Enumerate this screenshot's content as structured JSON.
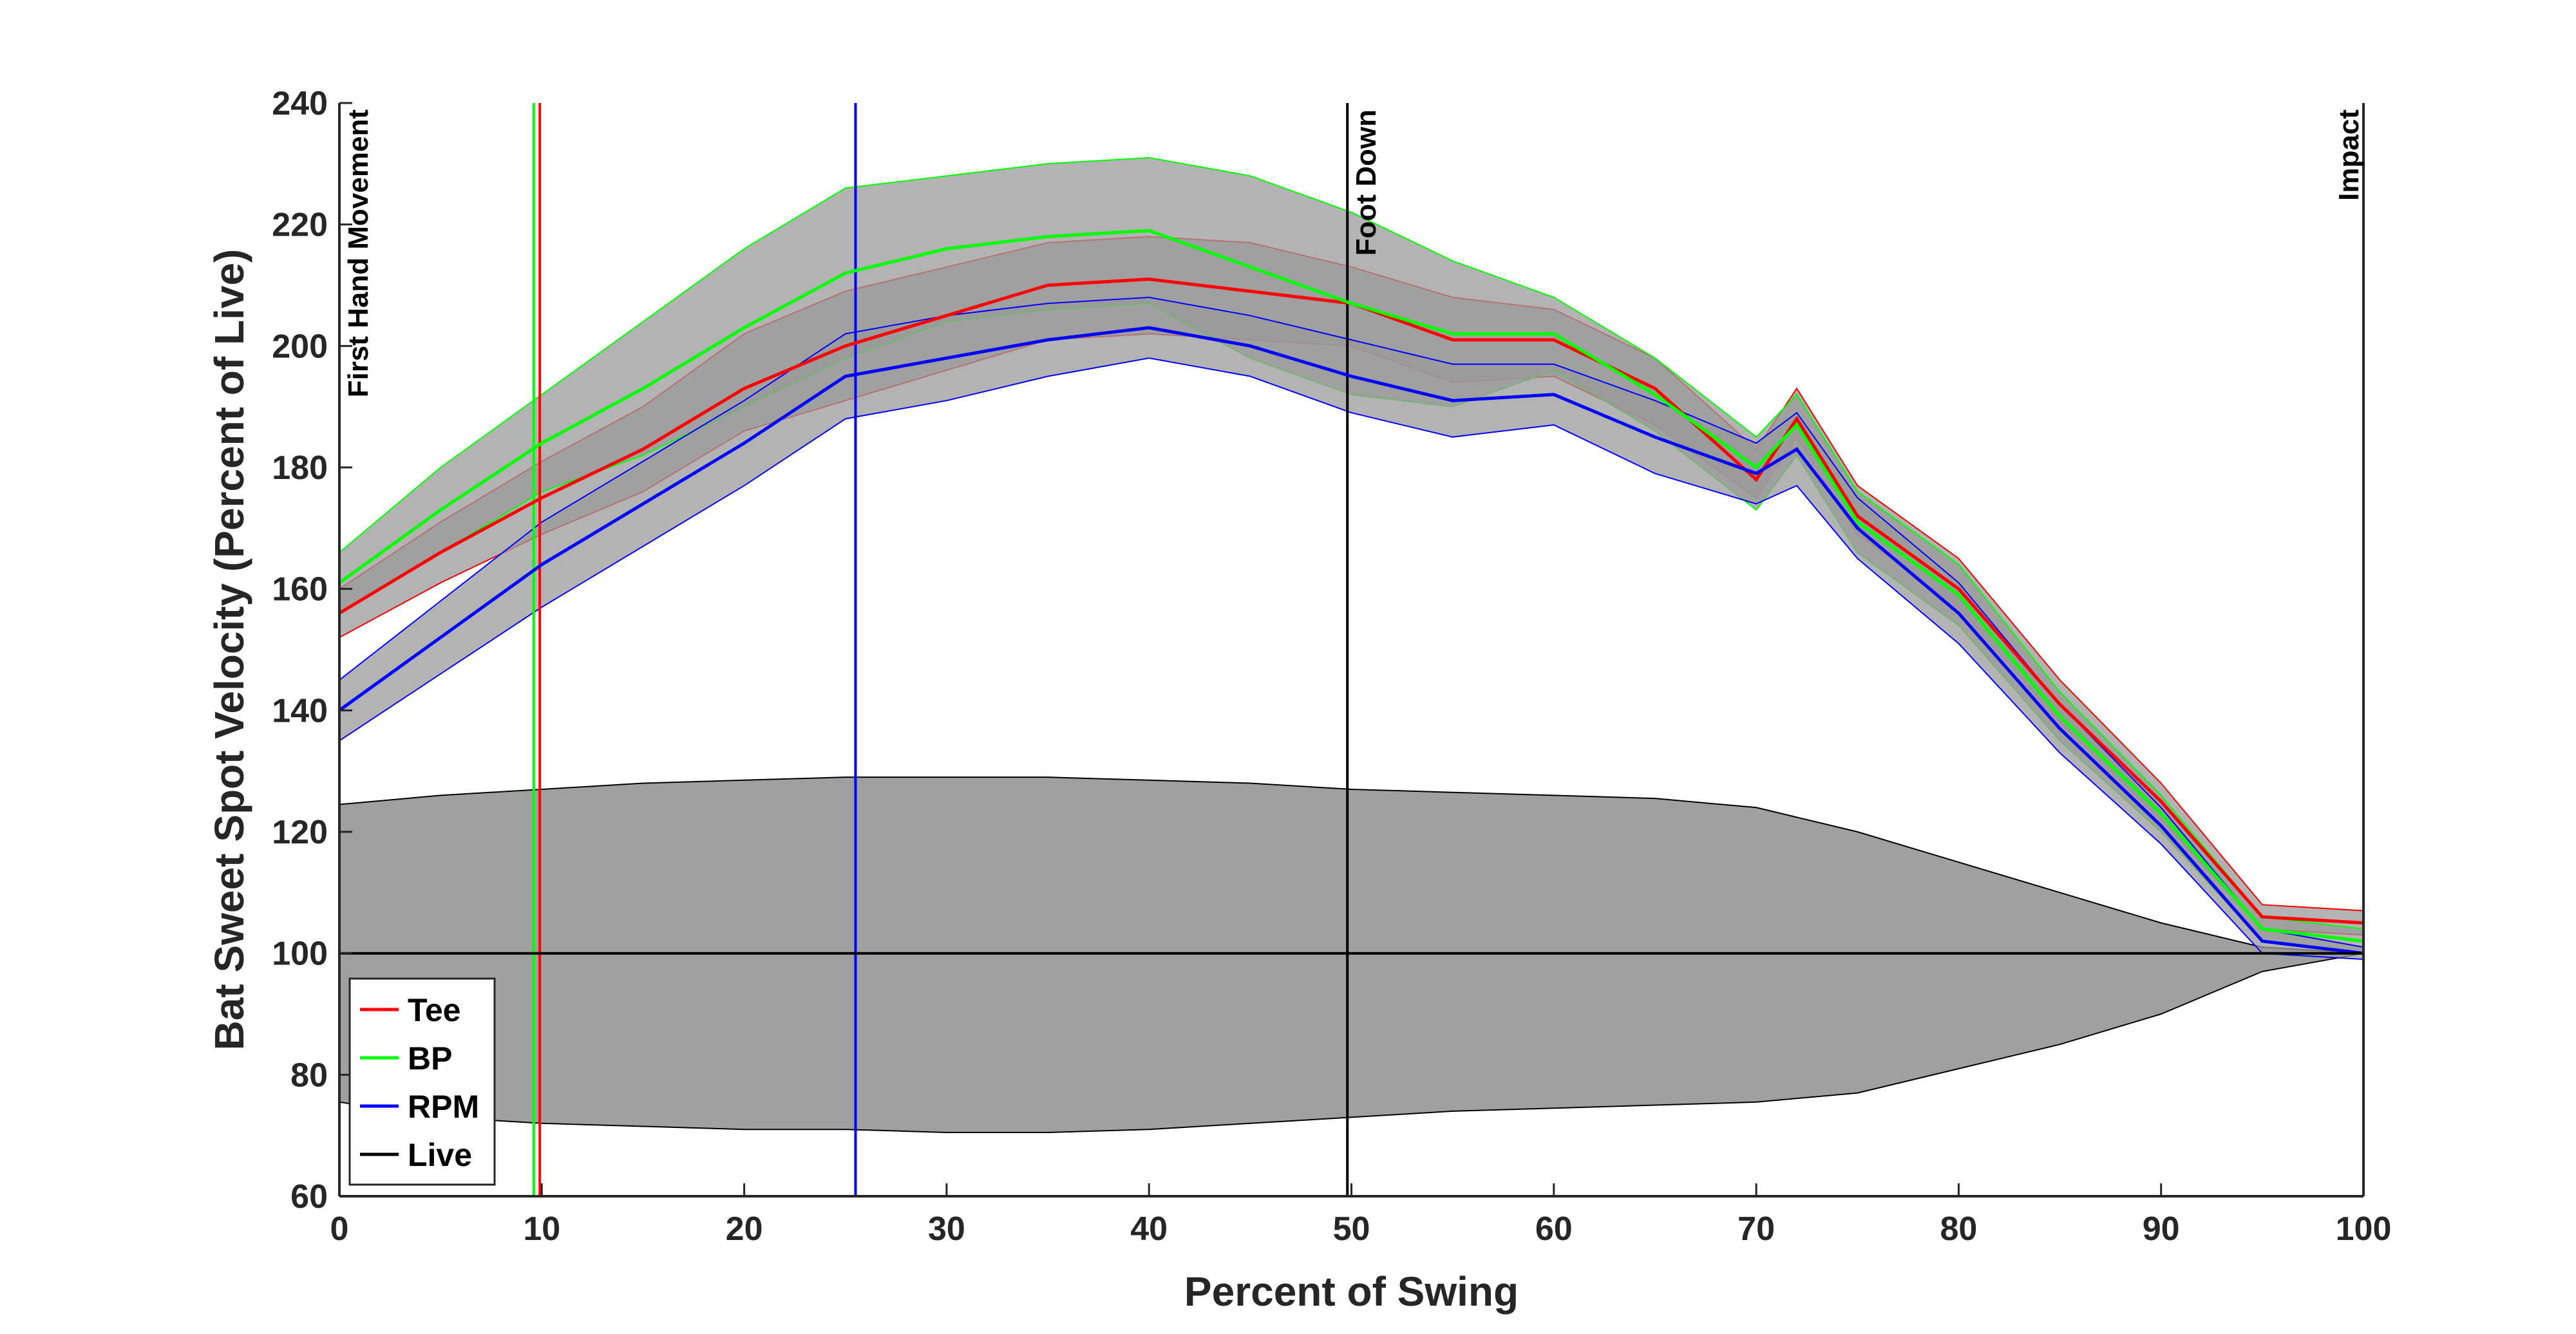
{
  "chart_data": {
    "type": "line",
    "title": "",
    "xlabel": "Percent of Swing",
    "ylabel": "Bat Sweet Spot Velocity (Percent of Live)",
    "xlim": [
      0,
      100
    ],
    "ylim": [
      60,
      240
    ],
    "xticks": [
      "0",
      "10",
      "20",
      "30",
      "40",
      "50",
      "60",
      "70",
      "80",
      "90",
      "100"
    ],
    "yticks": [
      "60",
      "80",
      "100",
      "120",
      "140",
      "160",
      "180",
      "200",
      "220",
      "240"
    ],
    "grid": false,
    "legend_position": "bottom-left",
    "series": [
      {
        "name": "Tee",
        "color": "#ff0000",
        "x": [
          0,
          5,
          10,
          15,
          20,
          25,
          30,
          35,
          40,
          45,
          50,
          55,
          60,
          65,
          70,
          72,
          75,
          80,
          85,
          90,
          95,
          100
        ],
        "mean": [
          156,
          166,
          175,
          183,
          193,
          200,
          205,
          210,
          211,
          209,
          207,
          201,
          201,
          193,
          178,
          188,
          172,
          160,
          141,
          125,
          106,
          105
        ],
        "upper": [
          160,
          171,
          181,
          190,
          202,
          209,
          213,
          217,
          218,
          217,
          213,
          208,
          206,
          198,
          183,
          193,
          177,
          165,
          145,
          128,
          108,
          107
        ],
        "lower": [
          152,
          161,
          169,
          176,
          186,
          191,
          196,
          201,
          202,
          201,
          200,
          194,
          195,
          187,
          175,
          185,
          169,
          157,
          138,
          122,
          104,
          103
        ]
      },
      {
        "name": "BP",
        "color": "#00ff00",
        "x": [
          0,
          5,
          10,
          15,
          20,
          25,
          30,
          35,
          40,
          45,
          50,
          55,
          60,
          65,
          70,
          72,
          75,
          80,
          85,
          90,
          95,
          100
        ],
        "mean": [
          161,
          173,
          184,
          193,
          203,
          212,
          216,
          218,
          219,
          213,
          207,
          202,
          202,
          192,
          180,
          187,
          171,
          159,
          139,
          123,
          104,
          102
        ],
        "upper": [
          166,
          180,
          192,
          204,
          216,
          226,
          228,
          230,
          231,
          228,
          222,
          214,
          208,
          198,
          185,
          192,
          176,
          164,
          143,
          126,
          106,
          104
        ],
        "lower": [
          156,
          166,
          176,
          182,
          190,
          198,
          204,
          206,
          207,
          198,
          192,
          190,
          196,
          186,
          173,
          182,
          166,
          154,
          135,
          120,
          102,
          100
        ]
      },
      {
        "name": "RPM",
        "color": "#0000ff",
        "x": [
          0,
          5,
          10,
          15,
          20,
          25,
          30,
          35,
          40,
          45,
          50,
          55,
          60,
          65,
          70,
          72,
          75,
          80,
          85,
          90,
          95,
          100
        ],
        "mean": [
          140,
          152,
          164,
          174,
          184,
          195,
          198,
          201,
          203,
          200,
          195,
          191,
          192,
          185,
          179,
          183,
          170,
          156,
          137,
          121,
          102,
          100
        ],
        "upper": [
          145,
          158,
          171,
          181,
          191,
          202,
          205,
          207,
          208,
          205,
          201,
          197,
          197,
          191,
          184,
          189,
          175,
          161,
          141,
          124,
          104,
          101
        ],
        "lower": [
          135,
          146,
          157,
          167,
          177,
          188,
          191,
          195,
          198,
          195,
          189,
          185,
          187,
          179,
          174,
          177,
          165,
          151,
          133,
          118,
          100,
          99
        ]
      },
      {
        "name": "Live",
        "color": "#000000",
        "x": [
          0,
          5,
          10,
          15,
          20,
          25,
          30,
          35,
          40,
          45,
          50,
          55,
          60,
          65,
          70,
          75,
          80,
          85,
          90,
          95,
          100
        ],
        "mean": [
          100,
          100,
          100,
          100,
          100,
          100,
          100,
          100,
          100,
          100,
          100,
          100,
          100,
          100,
          100,
          100,
          100,
          100,
          100,
          100,
          100
        ],
        "upper": [
          124.5,
          126,
          127,
          128,
          128.5,
          129,
          129,
          129,
          128.5,
          128,
          127,
          126.5,
          126,
          125.5,
          124,
          120,
          115,
          110,
          105,
          101,
          100
        ],
        "lower": [
          75.5,
          73,
          72,
          71.5,
          71,
          71,
          70.5,
          70.5,
          71,
          72,
          73,
          74,
          74.5,
          75,
          75.5,
          77,
          81,
          85,
          90,
          97,
          100
        ]
      }
    ],
    "vertical_lines": [
      {
        "x": 9.6,
        "color": "#00ff00"
      },
      {
        "x": 9.9,
        "color": "#ff0000"
      },
      {
        "x": 25.5,
        "color": "#0000ff"
      },
      {
        "x": 49.8,
        "color": "#000000"
      },
      {
        "x": 100,
        "color": "#000000"
      }
    ],
    "event_labels": [
      {
        "text": "First Hand Movement",
        "x": 0
      },
      {
        "text": "Foot Down",
        "x": 49.8
      },
      {
        "text": "Impact",
        "x": 100
      }
    ],
    "legend": [
      "Tee",
      "BP",
      "RPM",
      "Live"
    ]
  }
}
